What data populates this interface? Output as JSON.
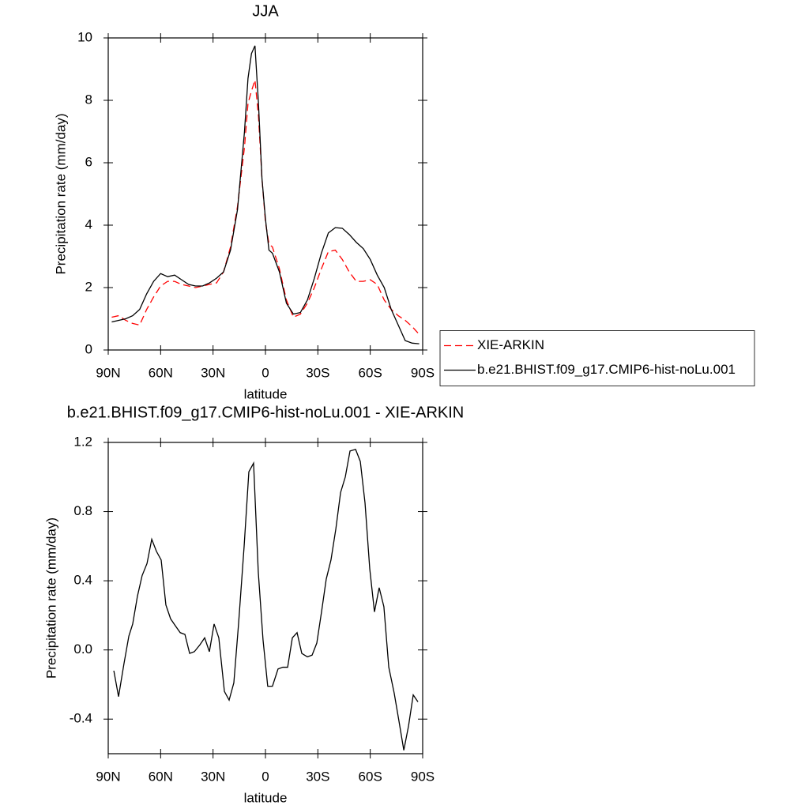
{
  "chart_data": [
    {
      "type": "line",
      "title": "JJA",
      "x_label": "latitude",
      "y_label": "Precipitation rate (mm/day)",
      "x": [
        88,
        84,
        80,
        76,
        72,
        68,
        64,
        60,
        56,
        52,
        48,
        44,
        40,
        36,
        32,
        28,
        24,
        20,
        16,
        12,
        10,
        8,
        6,
        4,
        2,
        0,
        -2,
        -4,
        -8,
        -12,
        -16,
        -20,
        -24,
        -28,
        -32,
        -36,
        -40,
        -44,
        -48,
        -52,
        -56,
        -60,
        -64,
        -68,
        -72,
        -76,
        -80,
        -84,
        -88
      ],
      "xlim": [
        90,
        -90
      ],
      "xticks": [
        {
          "value": 90,
          "label": "90N"
        },
        {
          "value": 60,
          "label": "60N"
        },
        {
          "value": 30,
          "label": "30N"
        },
        0,
        {
          "value": -30,
          "label": "30S"
        },
        {
          "value": -60,
          "label": "60S"
        },
        {
          "value": -90,
          "label": "90S"
        }
      ],
      "ylim": [
        0,
        10
      ],
      "yticks": [
        0,
        2,
        4,
        6,
        8,
        10
      ],
      "legend": "right",
      "series": [
        {
          "name": "XIE-ARKIN",
          "color": "#ff0000",
          "dashed": true,
          "values": [
            1.05,
            1.1,
            0.95,
            0.85,
            0.8,
            1.3,
            1.7,
            2.05,
            2.2,
            2.2,
            2.1,
            2.05,
            2.0,
            2.05,
            2.1,
            2.15,
            2.5,
            3.3,
            4.6,
            6.5,
            7.9,
            8.3,
            8.65,
            7.5,
            5.5,
            4.1,
            3.4,
            3.3,
            2.6,
            1.6,
            1.05,
            1.15,
            1.5,
            2.0,
            2.6,
            3.15,
            3.2,
            2.9,
            2.5,
            2.2,
            2.2,
            2.25,
            2.1,
            1.6,
            1.3,
            1.1,
            0.95,
            0.75,
            0.5
          ]
        },
        {
          "name": "b.e21.BHIST.f09_g17.CMIP6-hist-noLu.001",
          "color": "#000000",
          "dashed": false,
          "values": [
            0.9,
            0.95,
            1.0,
            1.1,
            1.3,
            1.8,
            2.2,
            2.45,
            2.35,
            2.4,
            2.25,
            2.1,
            2.05,
            2.05,
            2.15,
            2.3,
            2.5,
            3.2,
            4.5,
            7.0,
            8.7,
            9.5,
            9.75,
            7.9,
            5.5,
            4.2,
            3.2,
            3.1,
            2.5,
            1.5,
            1.15,
            1.2,
            1.6,
            2.3,
            3.1,
            3.75,
            3.92,
            3.9,
            3.7,
            3.45,
            3.25,
            2.9,
            2.4,
            2.0,
            1.3,
            0.8,
            0.3,
            0.22,
            0.2
          ]
        }
      ]
    },
    {
      "type": "line",
      "title": "b.e21.BHIST.f09_g17.CMIP6-hist-noLu.001 - XIE-ARKIN",
      "x_label": "latitude",
      "y_label": "Precipitation rate (mm/day)",
      "x": [
        86.8,
        84.1,
        81,
        78.2,
        76,
        73.3,
        70.6,
        67.8,
        65.1,
        62.4,
        59.7,
        57,
        54.3,
        51.6,
        48.8,
        46.1,
        43.4,
        40.7,
        37.5,
        34.8,
        32.1,
        29.4,
        26.7,
        23.5,
        20.8,
        18.1,
        15.4,
        12.2,
        9.5,
        6.8,
        4.1,
        1.4,
        -1.3,
        -4,
        -7.2,
        -9.9,
        -12.7,
        -15.4,
        -18.1,
        -20.8,
        -24,
        -26.7,
        -29.4,
        -32.1,
        -34.8,
        -37.5,
        -40.3,
        -43,
        -45.7,
        -48.4,
        -51.6,
        -54.3,
        -57,
        -59.7,
        -62.4,
        -65.1,
        -67.8,
        -70.6,
        -73.7,
        -76.4,
        -79.2,
        -81.9,
        -84.6,
        -87.3
      ],
      "xlim": [
        90,
        -90
      ],
      "xticks": [
        {
          "value": 90,
          "label": "90N"
        },
        {
          "value": 60,
          "label": "60N"
        },
        {
          "value": 30,
          "label": "30N"
        },
        0,
        {
          "value": -30,
          "label": "30S"
        },
        {
          "value": -60,
          "label": "60S"
        },
        {
          "value": -90,
          "label": "90S"
        }
      ],
      "ylim": [
        -0.6,
        1.2
      ],
      "yticks": [
        -0.4,
        {
          "value": 0,
          "label": "0.0"
        },
        0.4,
        0.8,
        1.2
      ],
      "series": [
        {
          "color": "#000000",
          "dashed": false,
          "values": [
            -0.12,
            -0.27,
            -0.08,
            0.08,
            0.15,
            0.31,
            0.43,
            0.5,
            0.64,
            0.57,
            0.52,
            0.26,
            0.18,
            0.14,
            0.1,
            0.09,
            -0.02,
            -0.01,
            0.03,
            0.07,
            -0.01,
            0.15,
            0.07,
            -0.24,
            -0.29,
            -0.19,
            0.15,
            0.6,
            1.03,
            1.08,
            0.45,
            0.06,
            -0.21,
            -0.21,
            -0.11,
            -0.1,
            -0.1,
            0.07,
            0.1,
            -0.02,
            -0.04,
            -0.03,
            0.04,
            0.22,
            0.41,
            0.52,
            0.7,
            0.91,
            1.0,
            1.15,
            1.16,
            1.09,
            0.85,
            0.47,
            0.22,
            0.36,
            0.25,
            -0.1,
            -0.25,
            -0.41,
            -0.58,
            -0.44,
            -0.26,
            -0.3
          ]
        }
      ]
    }
  ]
}
